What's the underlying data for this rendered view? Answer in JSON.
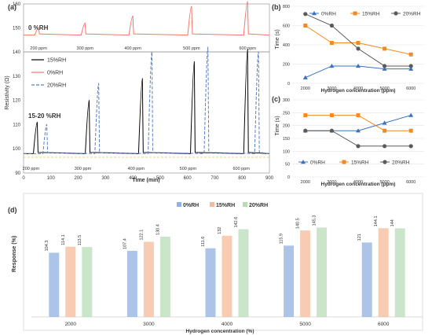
{
  "panel_labels": [
    "(a)",
    "(b)",
    "(c)",
    "(d)"
  ],
  "chart_data": [
    {
      "id": "a",
      "type": "line",
      "ylabel": "Resistivity (Ω)",
      "xlabel": "Time (min)",
      "xlim": [
        0,
        900
      ],
      "x_ticks": [
        0,
        100,
        200,
        300,
        400,
        500,
        600,
        700,
        800,
        900
      ],
      "lower_ylim": [
        90,
        140
      ],
      "lower_y_ticks": [
        90,
        100,
        110,
        120,
        130,
        140
      ],
      "upper_ylim": [
        140,
        160
      ],
      "upper_y_ticks": [
        140,
        150,
        160
      ],
      "legend": [
        "15%RH",
        "0%RH",
        "20%RH"
      ],
      "colors": {
        "15%RH": "#000000",
        "0%RH": "#f4756a",
        "20%RH": "#5a7fc4"
      },
      "annotations": [
        "0 %RH",
        "15-20 %RH"
      ],
      "upper_baseline": 147,
      "lower_baseline": 98,
      "series": [
        {
          "name": "0%RH",
          "peaks": [
            {
              "x": 55,
              "y": 150
            },
            {
              "x": 225,
              "y": 152
            },
            {
              "x": 400,
              "y": 155
            },
            {
              "x": 615,
              "y": 159
            },
            {
              "x": 820,
              "y": 161
            }
          ]
        },
        {
          "name": "15%RH",
          "peaks": [
            {
              "x": 50,
              "y": 111
            },
            {
              "x": 240,
              "y": 120
            },
            {
              "x": 435,
              "y": 129
            },
            {
              "x": 625,
              "y": 136
            },
            {
              "x": 820,
              "y": 141
            }
          ]
        },
        {
          "name": "20%RH",
          "peaks": [
            {
              "x": 85,
              "y": 110
            },
            {
              "x": 275,
              "y": 127
            },
            {
              "x": 470,
              "y": 140
            },
            {
              "x": 675,
              "y": 142
            },
            {
              "x": 860,
              "y": 140
            }
          ]
        }
      ],
      "upper_labels": [
        "200 ppm",
        "300 ppm",
        "400 ppm",
        "500 ppm",
        "600 ppm"
      ],
      "lower_labels": [
        "200 ppm",
        "300 ppm",
        "400 ppm",
        "500 ppm",
        "600 ppm"
      ]
    },
    {
      "id": "b",
      "type": "line",
      "ylabel": "Time (s)",
      "xlabel": "Hydrogen concentration (ppm)",
      "categories": [
        "2000",
        "3000",
        "4000",
        "5000",
        "6000"
      ],
      "ylim": [
        0,
        800
      ],
      "y_ticks": [
        0,
        200,
        400,
        600,
        800
      ],
      "series": [
        {
          "name": "0%RH",
          "marker": "triangle",
          "color": "#3a70c2",
          "values": [
            60,
            180,
            180,
            150,
            150
          ]
        },
        {
          "name": "15%RH",
          "marker": "square",
          "color": "#f08a24",
          "values": [
            600,
            420,
            420,
            360,
            300
          ]
        },
        {
          "name": "20%RH",
          "marker": "circle",
          "color": "#5a5a5a",
          "values": [
            720,
            600,
            360,
            180,
            180
          ]
        }
      ]
    },
    {
      "id": "c",
      "type": "line",
      "ylabel": "Time (s)",
      "xlabel": "Hydrogen concentration (ppm)",
      "categories": [
        "2000",
        "3000",
        "4000",
        "5000",
        "6000"
      ],
      "ylim": [
        0,
        300
      ],
      "y_ticks": [
        0,
        50,
        100,
        150,
        200,
        250,
        300
      ],
      "series": [
        {
          "name": "0%RH",
          "marker": "triangle",
          "color": "#3a70c2",
          "values": [
            180,
            180,
            180,
            210,
            240
          ]
        },
        {
          "name": "15%RH",
          "marker": "square",
          "color": "#f08a24",
          "values": [
            240,
            240,
            240,
            180,
            180
          ]
        },
        {
          "name": "20%RH",
          "marker": "circle",
          "color": "#5a5a5a",
          "values": [
            180,
            180,
            120,
            120,
            120
          ]
        }
      ]
    },
    {
      "id": "d",
      "type": "bar",
      "ylabel": "Response (%)",
      "xlabel": "Hydrogen concentration (%)",
      "categories": [
        "2000",
        "3000",
        "4000",
        "5000",
        "6000"
      ],
      "ylim": [
        0,
        170
      ],
      "series": [
        {
          "name": "0%RH",
          "color": "#8fb0e0",
          "values": [
            104.3,
            107.4,
            111.6,
            115.9,
            121
          ]
        },
        {
          "name": "15%RH",
          "color": "#f6b99a",
          "values": [
            114.1,
            122.1,
            132,
            140.5,
            144.1
          ]
        },
        {
          "name": "20%RH",
          "color": "#b8dcb8",
          "values": [
            113.5,
            130.4,
            142.6,
            145.3,
            144
          ]
        }
      ]
    }
  ]
}
